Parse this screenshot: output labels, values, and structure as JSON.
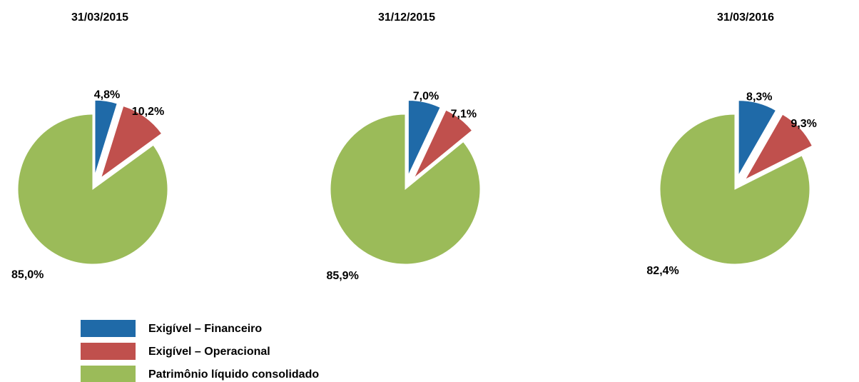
{
  "chart_data": [
    {
      "type": "pie",
      "title": "31/03/2015",
      "values": [
        4.8,
        10.2,
        85.0
      ],
      "value_labels": [
        "4,8%",
        "10,2%",
        "85,0%"
      ]
    },
    {
      "type": "pie",
      "title": "31/12/2015",
      "values": [
        7.0,
        7.1,
        85.9
      ],
      "value_labels": [
        "7,0%",
        "7,1%",
        "85,9%"
      ]
    },
    {
      "type": "pie",
      "title": "31/03/2016",
      "values": [
        8.3,
        9.3,
        82.4
      ],
      "value_labels": [
        "8,3%",
        "9,3%",
        "82,4%"
      ]
    }
  ],
  "legend": {
    "items": [
      {
        "name": "Exigível – Financeiro",
        "color": "#1f6aa8"
      },
      {
        "name": "Exigível – Operacional",
        "color": "#c0504d"
      },
      {
        "name": "Patrimônio líquido consolidado",
        "color": "#9bbb59"
      }
    ]
  }
}
